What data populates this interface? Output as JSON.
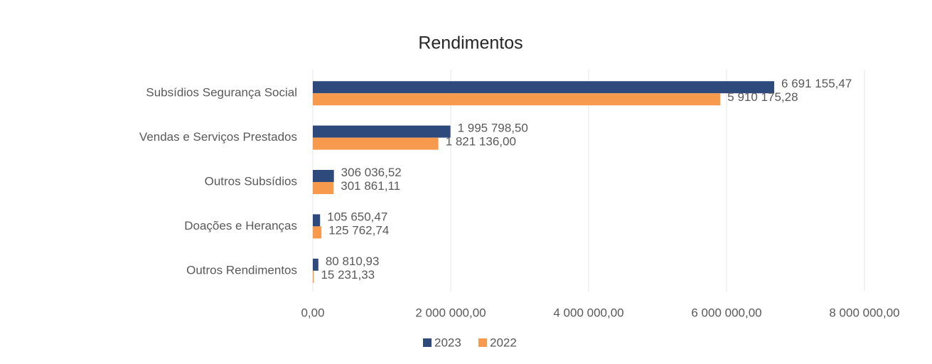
{
  "chart_data": {
    "type": "barh",
    "title": "Rendimentos",
    "categories": [
      "Subsídios Segurança Social",
      "Vendas e Serviços Prestados",
      "Outros Subsídios",
      "Doações e Heranças",
      "Outros Rendimentos"
    ],
    "series": [
      {
        "name": "2023",
        "color": "#2E4A7D",
        "values": [
          6691155.47,
          1995798.5,
          306036.52,
          105650.47,
          80810.93
        ],
        "value_labels": [
          "6 691 155,47",
          "1 995 798,50",
          "306 036,52",
          "105 650,47",
          "80 810,93"
        ]
      },
      {
        "name": "2022",
        "color": "#F79A4E",
        "values": [
          5910175.28,
          1821136.0,
          301861.11,
          125762.74,
          15231.33
        ],
        "value_labels": [
          "5 910 175,28",
          "1 821 136,00",
          "301 861,11",
          "125 762,74",
          "15 231,33"
        ]
      }
    ],
    "xlim": [
      0,
      8000000
    ],
    "xticks": [
      {
        "value": 0,
        "label": "0,00"
      },
      {
        "value": 2000000,
        "label": "2 000 000,00"
      },
      {
        "value": 4000000,
        "label": "4 000 000,00"
      },
      {
        "value": 6000000,
        "label": "6 000 000,00"
      },
      {
        "value": 8000000,
        "label": "8 000 000,00"
      }
    ],
    "grid": true,
    "legend": "bottom"
  }
}
